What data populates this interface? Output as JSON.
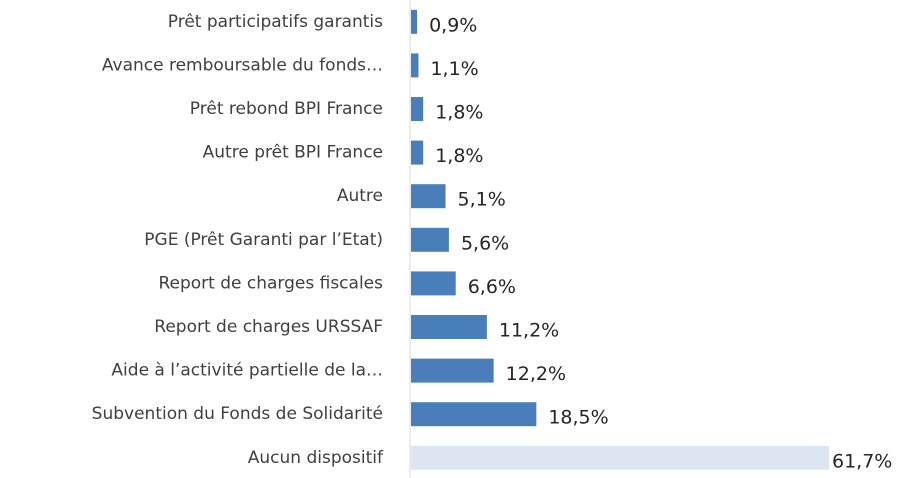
{
  "chart_data": {
    "type": "bar",
    "orientation": "horizontal",
    "categories": [
      "Prêt participatifs garantis",
      "Avance remboursable du fonds…",
      "Prêt rebond BPI France",
      "Autre prêt BPI France",
      "Autre",
      "PGE (Prêt Garanti par l’Etat)",
      "Report de charges fiscales",
      "Report de charges URSSAF",
      "Aide à l’activité partielle de la…",
      "Subvention du Fonds de Solidarité",
      "Aucun dispositif"
    ],
    "values": [
      0.9,
      1.1,
      1.8,
      1.8,
      5.1,
      5.6,
      6.6,
      11.2,
      12.2,
      18.5,
      61.7
    ],
    "value_labels": [
      "0,9%",
      "1,1%",
      "1,8%",
      "1,8%",
      "5,1%",
      "5,6%",
      "6,6%",
      "11,2%",
      "12,2%",
      "18,5%",
      "61,7%"
    ],
    "colors": [
      "#4a7ebb",
      "#4a7ebb",
      "#4a7ebb",
      "#4a7ebb",
      "#4a7ebb",
      "#4a7ebb",
      "#4a7ebb",
      "#4a7ebb",
      "#4a7ebb",
      "#4a7ebb",
      "#dce6f2"
    ]
  }
}
